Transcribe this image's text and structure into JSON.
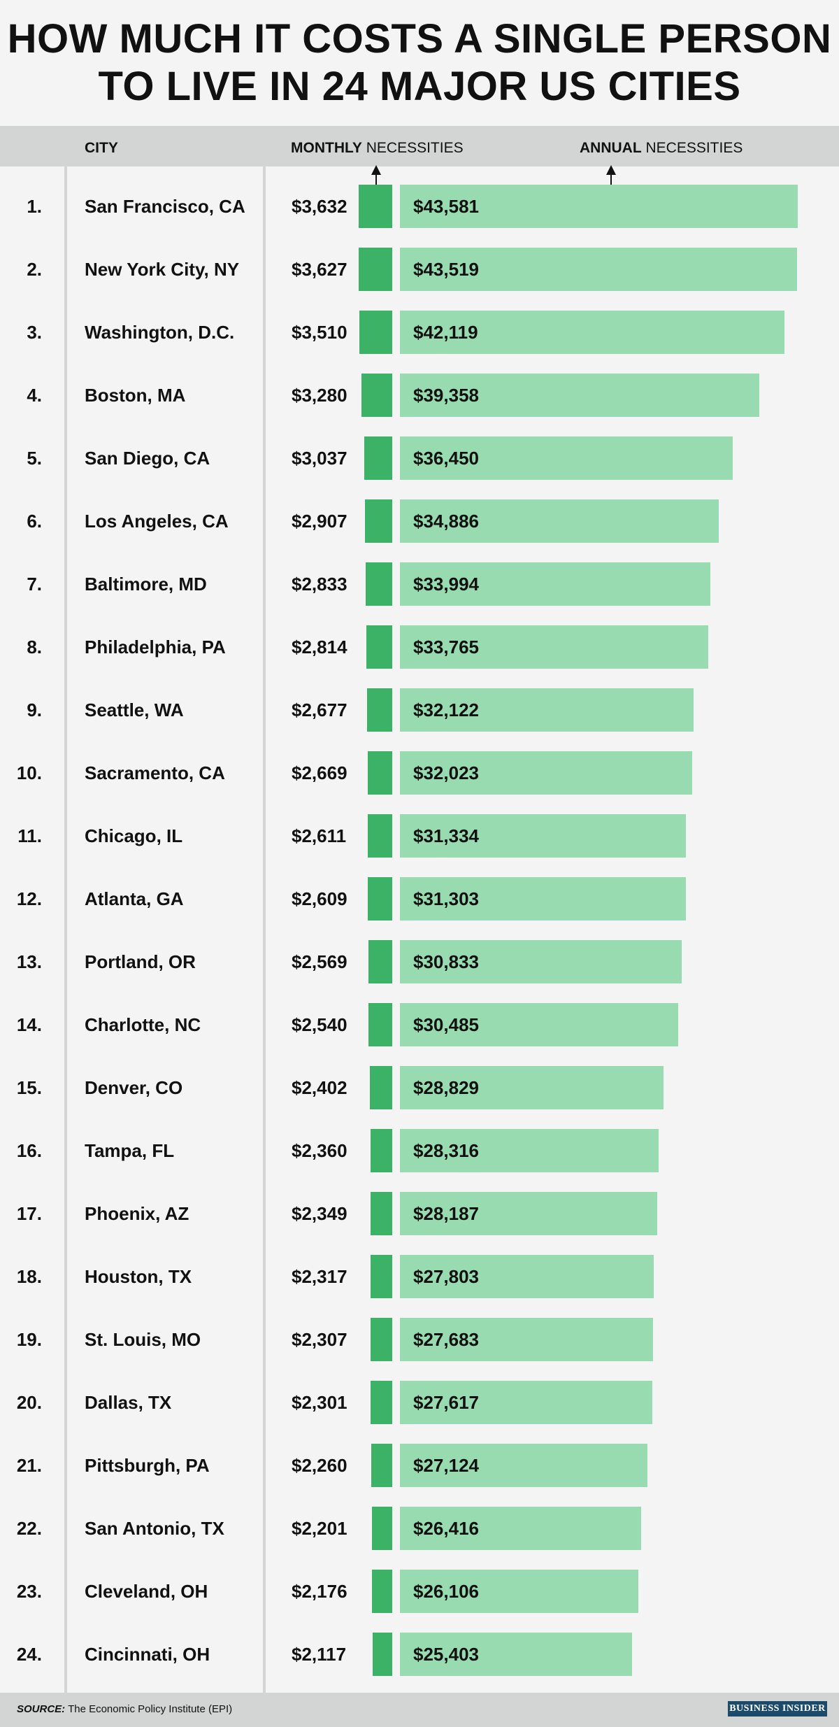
{
  "title": {
    "line1": "HOW MUCH IT COSTS A SINGLE PERSON",
    "line2": "TO LIVE IN 24 MAJOR US CITIES"
  },
  "header": {
    "city": "CITY",
    "monthly_bold": "MONTHLY",
    "monthly_rest": " NECESSITIES",
    "annual_bold": "ANNUAL",
    "annual_rest": " NECESSITIES"
  },
  "footer": {
    "source_label": "SOURCE:",
    "source_text": " The Economic Policy Institute (EPI)",
    "brand": "BUSINESS INSIDER"
  },
  "colors": {
    "monthly_bar": "#3bb266",
    "annual_bar": "#99dbb0",
    "header_bar": "#d3d5d4",
    "background": "#f4f4f4"
  },
  "chart_data": {
    "type": "bar",
    "title": "HOW MUCH IT COSTS A SINGLE PERSON TO LIVE IN 24 MAJOR US CITIES",
    "columns": [
      "CITY",
      "MONTHLY NECESSITIES",
      "ANNUAL NECESSITIES"
    ],
    "ranks": [
      "1.",
      "2.",
      "3.",
      "4.",
      "5.",
      "6.",
      "7.",
      "8.",
      "9.",
      "10.",
      "11.",
      "12.",
      "13.",
      "14.",
      "15.",
      "16.",
      "17.",
      "18.",
      "19.",
      "20.",
      "21.",
      "22.",
      "23.",
      "24."
    ],
    "categories": [
      "San Francisco, CA",
      "New York City, NY",
      "Washington, D.C.",
      "Boston, MA",
      "San Diego, CA",
      "Los Angeles, CA",
      "Baltimore, MD",
      "Philadelphia, PA",
      "Seattle, WA",
      "Sacramento, CA",
      "Chicago, IL",
      "Atlanta, GA",
      "Portland, OR",
      "Charlotte, NC",
      "Denver, CO",
      "Tampa, FL",
      "Phoenix, AZ",
      "Houston, TX",
      "St. Louis, MO",
      "Dallas, TX",
      "Pittsburgh, PA",
      "San Antonio, TX",
      "Cleveland, OH",
      "Cincinnati, OH"
    ],
    "series": [
      {
        "values": [
          3632,
          3627,
          3510,
          3280,
          3037,
          2907,
          2833,
          2814,
          2677,
          2669,
          2611,
          2609,
          2569,
          2540,
          2402,
          2360,
          2349,
          2317,
          2307,
          2301,
          2260,
          2201,
          2176,
          2117
        ],
        "labels": [
          "$3,632",
          "$3,627",
          "$3,510",
          "$3,280",
          "$3,037",
          "$2,907",
          "$2,833",
          "$2,814",
          "$2,677",
          "$2,669",
          "$2,611",
          "$2,609",
          "$2,569",
          "$2,540",
          "$2,402",
          "$2,360",
          "$2,349",
          "$2,317",
          "$2,307",
          "$2,301",
          "$2,260",
          "$2,201",
          "$2,176",
          "$2,117"
        ]
      },
      {
        "values": [
          43581,
          43519,
          42119,
          39358,
          36450,
          34886,
          33994,
          33765,
          32122,
          32023,
          31334,
          31303,
          30833,
          30485,
          28829,
          28316,
          28187,
          27803,
          27683,
          27617,
          27124,
          26416,
          26106,
          25403
        ],
        "labels": [
          "$43,581",
          "$43,519",
          "$42,119",
          "$39,358",
          "$36,450",
          "$34,886",
          "$33,994",
          "$33,765",
          "$32,122",
          "$32,023",
          "$31,334",
          "$31,303",
          "$30,833",
          "$30,485",
          "$28,829",
          "$28,316",
          "$28,187",
          "$27,803",
          "$27,683",
          "$27,617",
          "$27,124",
          "$26,416",
          "$26,106",
          "$25,403"
        ]
      }
    ],
    "grid": false,
    "legend": "none"
  }
}
